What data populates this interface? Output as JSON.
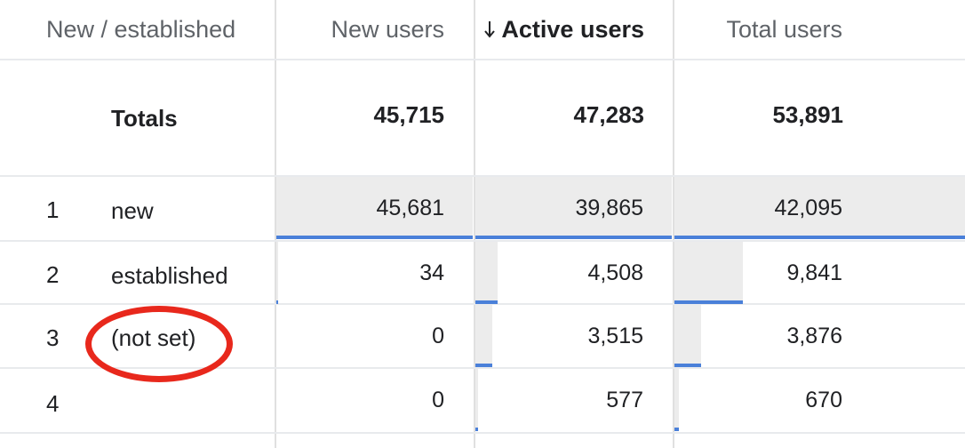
{
  "headers": {
    "dimension": "New / established",
    "new_users": "New users",
    "active_users": "Active users",
    "total_users": "Total users"
  },
  "totals": {
    "label": "Totals",
    "new_users": "45,715",
    "active_users": "47,283",
    "total_users": "53,891"
  },
  "rows": [
    {
      "num": "1",
      "label": "new",
      "new_users": "45,681",
      "active_users": "39,865",
      "total_users": "42,095"
    },
    {
      "num": "2",
      "label": "established",
      "new_users": "34",
      "active_users": "4,508",
      "total_users": "9,841"
    },
    {
      "num": "3",
      "label": "(not set)",
      "new_users": "0",
      "active_users": "3,515",
      "total_users": "3,876"
    },
    {
      "num": "4",
      "label": "",
      "new_users": "0",
      "active_users": "577",
      "total_users": "670"
    }
  ],
  "bar_fraction": {
    "new_users": [
      1.0,
      0.0007,
      0.0,
      0.0
    ],
    "active_users": [
      1.0,
      0.113,
      0.088,
      0.0145
    ],
    "total_users": [
      1.0,
      0.234,
      0.092,
      0.0159
    ]
  },
  "colors": {
    "bar_fill": "#ececec",
    "bar_line": "#4a80d9",
    "annotation_circle": "#e8281c"
  },
  "sort": {
    "column": "active_users",
    "direction": "descending",
    "icon": "arrow-down-icon"
  }
}
